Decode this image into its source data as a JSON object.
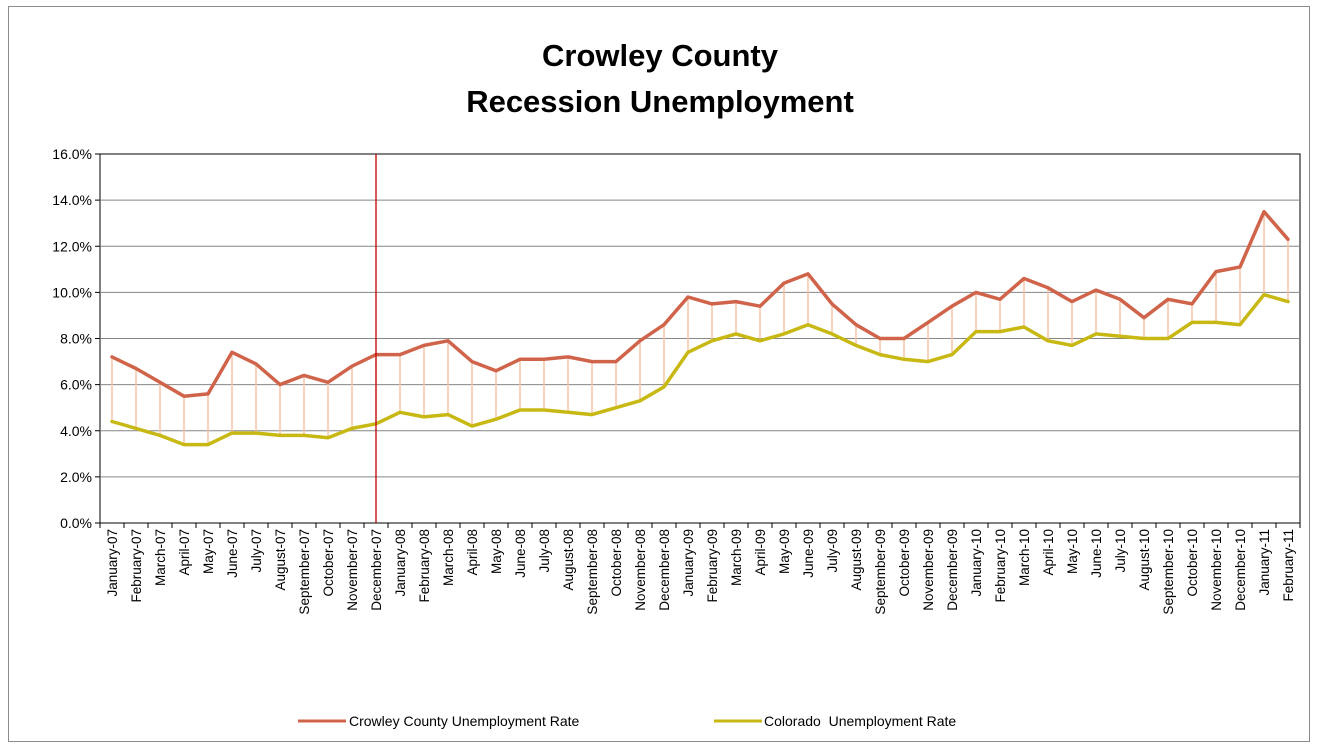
{
  "chart_data": {
    "type": "line",
    "title_lines": [
      "Crowley County",
      "Recession Unemployment"
    ],
    "xlabel": "",
    "ylabel": "",
    "ylim": [
      0,
      16
    ],
    "y_ticks": [
      "0.0%",
      "2.0%",
      "4.0%",
      "6.0%",
      "8.0%",
      "10.0%",
      "12.0%",
      "14.0%",
      "16.0%"
    ],
    "grid": "horizontal",
    "legend_position": "bottom",
    "recession_marker_category": "December-07",
    "hi_lo_lines": true,
    "categories": [
      "January-07",
      "February-07",
      "March-07",
      "April-07",
      "May-07",
      "June-07",
      "July-07",
      "August-07",
      "September-07",
      "October-07",
      "November-07",
      "December-07",
      "January-08",
      "February-08",
      "March-08",
      "April-08",
      "May-08",
      "June-08",
      "July-08",
      "August-08",
      "September-08",
      "October-08",
      "November-08",
      "December-08",
      "January-09",
      "February-09",
      "March-09",
      "April-09",
      "May-09",
      "June-09",
      "July-09",
      "August-09",
      "September-09",
      "October-09",
      "November-09",
      "December-09",
      "January-10",
      "February-10",
      "March-10",
      "April-10",
      "May-10",
      "June-10",
      "July-10",
      "August-10",
      "September-10",
      "October-10",
      "November-10",
      "December-10",
      "January-11",
      "February-11"
    ],
    "series": [
      {
        "name": "Crowley County Unemployment Rate",
        "color": "#d0644a",
        "values": [
          7.2,
          6.7,
          6.1,
          5.5,
          5.6,
          7.4,
          6.9,
          6.0,
          6.4,
          6.1,
          6.8,
          7.3,
          7.3,
          7.7,
          7.9,
          7.0,
          6.6,
          7.1,
          7.1,
          7.2,
          7.0,
          7.0,
          7.9,
          8.6,
          9.8,
          9.5,
          9.6,
          9.4,
          10.4,
          10.8,
          9.5,
          8.6,
          8.0,
          8.0,
          8.7,
          9.4,
          10.0,
          9.7,
          10.6,
          10.2,
          9.6,
          10.1,
          9.7,
          8.9,
          9.7,
          9.5,
          10.9,
          11.1,
          13.5,
          12.3
        ]
      },
      {
        "name": "Colorado  Unemployment Rate",
        "color": "#c8b814",
        "values": [
          4.4,
          4.1,
          3.8,
          3.4,
          3.4,
          3.9,
          3.9,
          3.8,
          3.8,
          3.7,
          4.1,
          4.3,
          4.8,
          4.6,
          4.7,
          4.2,
          4.5,
          4.9,
          4.9,
          4.8,
          4.7,
          5.0,
          5.3,
          5.9,
          7.4,
          7.9,
          8.2,
          7.9,
          8.2,
          8.6,
          8.2,
          7.7,
          7.3,
          7.1,
          7.0,
          7.3,
          8.3,
          8.3,
          8.5,
          7.9,
          7.7,
          8.2,
          8.1,
          8.0,
          8.0,
          8.7,
          8.7,
          8.6,
          9.9,
          9.6
        ]
      }
    ]
  }
}
